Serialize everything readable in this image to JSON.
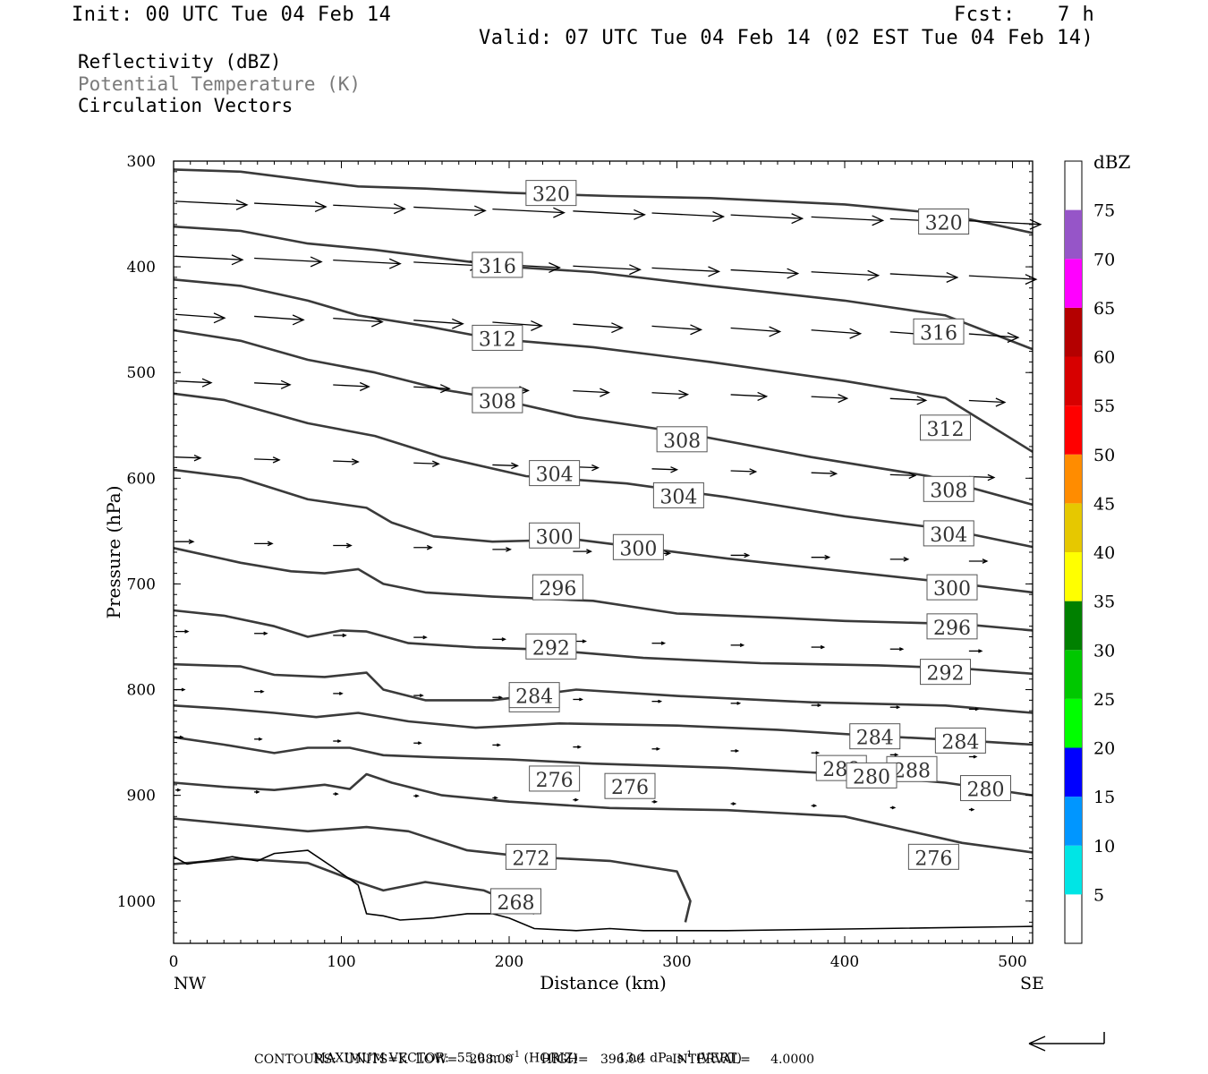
{
  "header": {
    "init": "Init: 00 UTC Tue 04 Feb 14",
    "fcst_label": "Fcst:",
    "fcst_value": "7 h",
    "valid": "Valid: 07 UTC Tue 04 Feb 14 (02 EST Tue 04 Feb 14)"
  },
  "legend": {
    "line1": "Reflectivity (dBZ)",
    "line2": "Potential Temperature (K)",
    "line3": "Circulation Vectors"
  },
  "colorbar": {
    "title": "dBZ",
    "levels": [
      5,
      10,
      15,
      20,
      25,
      30,
      35,
      40,
      45,
      50,
      55,
      60,
      65,
      70,
      75
    ],
    "colors": [
      "#00e5e5",
      "#0096ff",
      "#0000ff",
      "#00ff00",
      "#00c800",
      "#008000",
      "#ffff00",
      "#e6c800",
      "#ff8c00",
      "#ff0000",
      "#d70000",
      "#b40000",
      "#ff00ff",
      "#9655c8"
    ]
  },
  "footer": {
    "max_vector_label": "MAXIMUM VECTOR:",
    "horiz_value": "55.0",
    "horiz_unit": "m s",
    "horiz_tag": "(HORIZ)",
    "vert_value": "13.4",
    "vert_unit": "dPa s",
    "vert_tag": "(VERT)",
    "exponent": "-1",
    "contours_line": "CONTOURS:  UNITS=K  LOW=   268.00       HIGH=   396.00       INTERVAL=     4.0000"
  },
  "chart_data": {
    "type": "line",
    "xlabel": "Distance (km)",
    "ylabel": "Pressure (hPa)",
    "xlim": [
      0,
      512
    ],
    "ylim": [
      300,
      1040
    ],
    "y_inverted": true,
    "x_ticks": [
      0,
      100,
      200,
      300,
      400,
      500
    ],
    "y_ticks": [
      300,
      400,
      500,
      600,
      700,
      800,
      900,
      1000
    ],
    "x_end_labels": {
      "left": "NW",
      "right": "SE"
    },
    "units": "K",
    "contours": [
      {
        "value": 320,
        "points": [
          [
            0,
            308
          ],
          [
            40,
            310
          ],
          [
            80,
            318
          ],
          [
            110,
            324
          ],
          [
            150,
            326
          ],
          [
            200,
            330
          ],
          [
            260,
            333
          ],
          [
            320,
            335
          ],
          [
            400,
            341
          ],
          [
            460,
            350
          ],
          [
            512,
            368
          ]
        ],
        "labels": [
          [
            225,
            331
          ],
          [
            459,
            358
          ]
        ]
      },
      {
        "value": 316,
        "points": [
          [
            0,
            362
          ],
          [
            40,
            366
          ],
          [
            80,
            378
          ],
          [
            120,
            384
          ],
          [
            160,
            392
          ],
          [
            200,
            400
          ],
          [
            250,
            405
          ],
          [
            320,
            418
          ],
          [
            400,
            432
          ],
          [
            460,
            446
          ],
          [
            512,
            478
          ]
        ],
        "labels": [
          [
            193,
            399
          ],
          [
            456,
            462
          ]
        ]
      },
      {
        "value": 312,
        "points": [
          [
            0,
            412
          ],
          [
            40,
            418
          ],
          [
            80,
            432
          ],
          [
            110,
            446
          ],
          [
            150,
            456
          ],
          [
            190,
            468
          ],
          [
            250,
            476
          ],
          [
            320,
            490
          ],
          [
            400,
            508
          ],
          [
            460,
            524
          ],
          [
            512,
            575
          ]
        ],
        "labels": [
          [
            193,
            468
          ],
          [
            460,
            553
          ]
        ]
      },
      {
        "value": 308,
        "points": [
          [
            0,
            460
          ],
          [
            40,
            470
          ],
          [
            80,
            488
          ],
          [
            120,
            500
          ],
          [
            160,
            516
          ],
          [
            190,
            524
          ],
          [
            240,
            542
          ],
          [
            300,
            556
          ],
          [
            380,
            580
          ],
          [
            450,
            598
          ],
          [
            512,
            625
          ]
        ],
        "labels": [
          [
            193,
            527
          ],
          [
            303,
            564
          ],
          [
            462,
            611
          ]
        ]
      },
      {
        "value": 304,
        "points": [
          [
            0,
            520
          ],
          [
            30,
            526
          ],
          [
            80,
            548
          ],
          [
            120,
            560
          ],
          [
            160,
            580
          ],
          [
            210,
            598
          ],
          [
            270,
            605
          ],
          [
            330,
            618
          ],
          [
            400,
            636
          ],
          [
            460,
            648
          ],
          [
            512,
            665
          ]
        ],
        "labels": [
          [
            227,
            596
          ],
          [
            301,
            617
          ],
          [
            462,
            653
          ]
        ]
      },
      {
        "value": 300,
        "points": [
          [
            0,
            592
          ],
          [
            40,
            600
          ],
          [
            80,
            620
          ],
          [
            115,
            628
          ],
          [
            130,
            642
          ],
          [
            155,
            655
          ],
          [
            190,
            660
          ],
          [
            240,
            658
          ],
          [
            330,
            676
          ],
          [
            400,
            688
          ],
          [
            470,
            700
          ],
          [
            512,
            708
          ]
        ],
        "labels": [
          [
            227,
            655
          ],
          [
            277,
            666
          ],
          [
            464,
            704
          ]
        ]
      },
      {
        "value": 296,
        "points": [
          [
            0,
            666
          ],
          [
            40,
            680
          ],
          [
            70,
            688
          ],
          [
            90,
            690
          ],
          [
            110,
            686
          ],
          [
            125,
            700
          ],
          [
            150,
            708
          ],
          [
            190,
            712
          ],
          [
            250,
            716
          ],
          [
            300,
            728
          ],
          [
            360,
            732
          ],
          [
            400,
            735
          ],
          [
            470,
            738
          ],
          [
            512,
            744
          ]
        ],
        "labels": [
          [
            229,
            704
          ],
          [
            464,
            741
          ]
        ]
      },
      {
        "value": 292,
        "points": [
          [
            0,
            725
          ],
          [
            30,
            730
          ],
          [
            60,
            740
          ],
          [
            80,
            750
          ],
          [
            100,
            744
          ],
          [
            115,
            745
          ],
          [
            140,
            756
          ],
          [
            180,
            760
          ],
          [
            220,
            762
          ],
          [
            280,
            770
          ],
          [
            350,
            775
          ],
          [
            420,
            777
          ],
          [
            470,
            780
          ],
          [
            512,
            785
          ]
        ],
        "labels": [
          [
            225,
            760
          ],
          [
            460,
            784
          ]
        ]
      },
      {
        "value": 288,
        "points": [
          [
            0,
            776
          ],
          [
            40,
            778
          ],
          [
            60,
            786
          ],
          [
            90,
            788
          ],
          [
            115,
            784
          ],
          [
            125,
            800
          ],
          [
            150,
            810
          ],
          [
            190,
            810
          ],
          [
            240,
            800
          ],
          [
            300,
            806
          ],
          [
            380,
            812
          ],
          [
            460,
            815
          ],
          [
            512,
            822
          ]
        ],
        "labels": [
          [
            215,
            810
          ],
          [
            398,
            875
          ],
          [
            440,
            876
          ]
        ]
      },
      {
        "value": 284,
        "points": [
          [
            0,
            815
          ],
          [
            30,
            818
          ],
          [
            60,
            822
          ],
          [
            85,
            826
          ],
          [
            110,
            822
          ],
          [
            140,
            830
          ],
          [
            180,
            836
          ],
          [
            230,
            832
          ],
          [
            300,
            834
          ],
          [
            360,
            838
          ],
          [
            420,
            844
          ],
          [
            470,
            848
          ],
          [
            512,
            852
          ]
        ],
        "labels": [
          [
            215,
            806
          ],
          [
            418,
            845
          ],
          [
            469,
            849
          ]
        ]
      },
      {
        "value": 280,
        "points": [
          [
            0,
            845
          ],
          [
            30,
            852
          ],
          [
            60,
            860
          ],
          [
            80,
            855
          ],
          [
            105,
            855
          ],
          [
            125,
            862
          ],
          [
            155,
            864
          ],
          [
            200,
            866
          ],
          [
            250,
            870
          ],
          [
            330,
            874
          ],
          [
            400,
            880
          ],
          [
            460,
            888
          ],
          [
            512,
            900
          ]
        ],
        "labels": [
          [
            416,
            882
          ],
          [
            484,
            894
          ]
        ]
      },
      {
        "value": 276,
        "points": [
          [
            0,
            888
          ],
          [
            30,
            892
          ],
          [
            60,
            895
          ],
          [
            90,
            890
          ],
          [
            105,
            894
          ],
          [
            115,
            880
          ],
          [
            130,
            888
          ],
          [
            160,
            900
          ],
          [
            200,
            906
          ],
          [
            260,
            912
          ],
          [
            330,
            914
          ],
          [
            400,
            920
          ],
          [
            470,
            945
          ],
          [
            512,
            954
          ]
        ],
        "labels": [
          [
            227,
            885
          ],
          [
            272,
            892
          ],
          [
            453,
            959
          ]
        ]
      },
      {
        "value": 272,
        "points": [
          [
            0,
            922
          ],
          [
            40,
            928
          ],
          [
            80,
            934
          ],
          [
            115,
            930
          ],
          [
            140,
            934
          ],
          [
            175,
            952
          ],
          [
            210,
            958
          ],
          [
            260,
            962
          ],
          [
            300,
            972
          ],
          [
            308,
            1000
          ],
          [
            305,
            1020
          ]
        ],
        "labels": [
          [
            213,
            959
          ]
        ]
      },
      {
        "value": 268,
        "points": [
          [
            0,
            965
          ],
          [
            40,
            960
          ],
          [
            80,
            964
          ],
          [
            110,
            982
          ],
          [
            125,
            990
          ],
          [
            150,
            982
          ],
          [
            185,
            990
          ],
          [
            200,
            1000
          ],
          [
            215,
            1012
          ]
        ],
        "labels": [
          [
            204,
            1001
          ]
        ]
      }
    ]
  }
}
